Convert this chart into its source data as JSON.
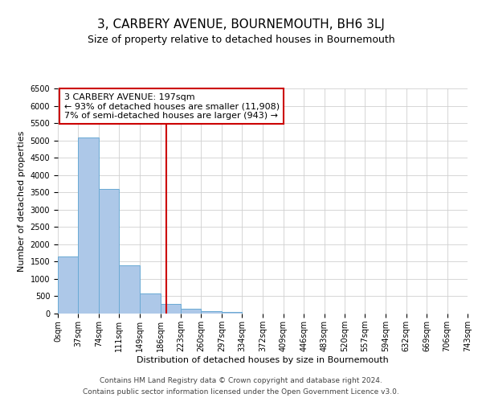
{
  "title": "3, CARBERY AVENUE, BOURNEMOUTH, BH6 3LJ",
  "subtitle": "Size of property relative to detached houses in Bournemouth",
  "xlabel": "Distribution of detached houses by size in Bournemouth",
  "ylabel": "Number of detached properties",
  "footer_line1": "Contains HM Land Registry data © Crown copyright and database right 2024.",
  "footer_line2": "Contains public sector information licensed under the Open Government Licence v3.0.",
  "bin_edges": [
    0,
    37,
    74,
    111,
    149,
    186,
    223,
    260,
    297,
    334,
    372,
    409,
    446,
    483,
    520,
    557,
    594,
    632,
    669,
    706,
    743
  ],
  "bar_heights": [
    1650,
    5080,
    3600,
    1400,
    580,
    290,
    150,
    70,
    50,
    0,
    0,
    0,
    0,
    0,
    0,
    0,
    0,
    0,
    0,
    0
  ],
  "bar_color": "#adc8e8",
  "bar_edgecolor": "#6aaad4",
  "vline_color": "#cc0000",
  "vline_x": 197,
  "annotation_line1": "3 CARBERY AVENUE: 197sqm",
  "annotation_line2": "← 93% of detached houses are smaller (11,908)",
  "annotation_line3": "7% of semi-detached houses are larger (943) →",
  "annotation_box_edgecolor": "#cc0000",
  "annotation_box_facecolor": "#ffffff",
  "ylim": [
    0,
    6500
  ],
  "yticks": [
    0,
    500,
    1000,
    1500,
    2000,
    2500,
    3000,
    3500,
    4000,
    4500,
    5000,
    5500,
    6000,
    6500
  ],
  "tick_labels": [
    "0sqm",
    "37sqm",
    "74sqm",
    "111sqm",
    "149sqm",
    "186sqm",
    "223sqm",
    "260sqm",
    "297sqm",
    "334sqm",
    "372sqm",
    "409sqm",
    "446sqm",
    "483sqm",
    "520sqm",
    "557sqm",
    "594sqm",
    "632sqm",
    "669sqm",
    "706sqm",
    "743sqm"
  ],
  "grid_color": "#d0d0d0",
  "background_color": "#ffffff",
  "title_fontsize": 11,
  "subtitle_fontsize": 9,
  "axis_label_fontsize": 8,
  "tick_fontsize": 7,
  "annotation_fontsize": 8,
  "footer_fontsize": 6.5
}
